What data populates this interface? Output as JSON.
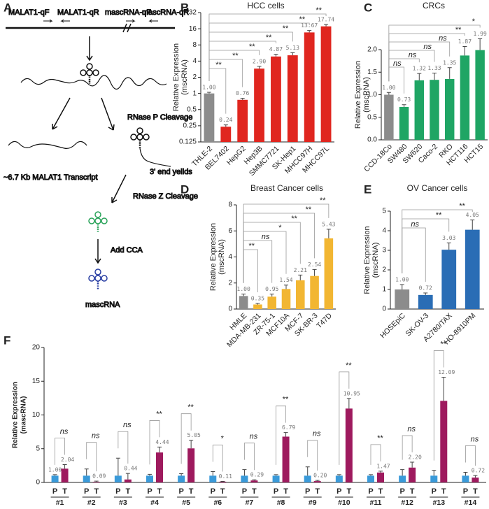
{
  "panel_labels": [
    "A",
    "B",
    "C",
    "D",
    "E",
    "F"
  ],
  "diagram": {
    "primers": [
      "MALAT1-qF",
      "MALAT1-qR",
      "mascRNA-qF",
      "mascRNA-qR"
    ],
    "steps": [
      "RNase P Cleavage",
      "RNase Z Cleavage",
      "Add CCA"
    ],
    "transcript": "~6.7 Kb MALAT1 Transcript",
    "end_product": "3' end yeilds",
    "product": "mascRNA"
  },
  "chart_data": [
    {
      "type": "bar",
      "title": "HCC cells",
      "y_label": [
        "Relative  Expression",
        "(mscRNA)"
      ],
      "categories": [
        "THLE-2",
        "BEL7402",
        "HepG2",
        "Hep3B",
        "SMMC7721",
        "SK-Hep1",
        "MHCC97H",
        "MHCC97L"
      ],
      "values": [
        1.0,
        0.24,
        0.76,
        2.9,
        4.87,
        5.13,
        13.67,
        17.74
      ],
      "value_labels": [
        "1.00",
        "0.24",
        "0.76",
        "2.90",
        "4.87",
        "5.13",
        "13.67",
        "17.74"
      ],
      "errors": [
        0.05,
        0.02,
        0.05,
        0.3,
        0.5,
        0.6,
        1.2,
        1.5
      ],
      "colors": [
        "#8c8c8c",
        "#e0261f",
        "#e0261f",
        "#e0261f",
        "#e0261f",
        "#e0261f",
        "#e0261f",
        "#e0261f"
      ],
      "significance": [
        null,
        "**",
        "**",
        "**",
        "**",
        "**",
        "**",
        "**"
      ],
      "log_scale": true,
      "ylim": [
        0.125,
        32
      ],
      "yticks": [
        0.125,
        0.25,
        0.5,
        1,
        2,
        4,
        8,
        16,
        32
      ]
    },
    {
      "type": "bar",
      "title": "CRCs",
      "y_label": [
        "Relative Expression",
        "(mscRNA)"
      ],
      "categories": [
        "CCD-18Co",
        "SW480",
        "SW620",
        "Caco-2",
        "RKO",
        "HCT116",
        "HCT15"
      ],
      "values": [
        1.0,
        0.73,
        1.32,
        1.33,
        1.35,
        1.87,
        1.99
      ],
      "value_labels": [
        "1.00",
        "0.73",
        "1.32",
        "1.33",
        "1.35",
        "1.87",
        "1.99"
      ],
      "errors": [
        0.05,
        0.05,
        0.15,
        0.15,
        0.25,
        0.2,
        0.25
      ],
      "colors": [
        "#8c8c8c",
        "#1fa564",
        "#1fa564",
        "#1fa564",
        "#1fa564",
        "#1fa564",
        "#1fa564"
      ],
      "significance": [
        null,
        "ns",
        "ns",
        "ns",
        "ns",
        "**",
        "*"
      ],
      "ylim": [
        0,
        2
      ],
      "yticks": [
        {
          "value": 0,
          "label": "0.0"
        },
        {
          "value": 0.5,
          "label": "0.5"
        },
        {
          "value": 1,
          "label": "1.0"
        },
        {
          "value": 1.5,
          "label": "1.5"
        },
        {
          "value": 2,
          "label": "2.0"
        }
      ]
    },
    {
      "type": "bar",
      "title": "Breast Cancer cells",
      "y_label": [
        "Relative Expression",
        "(mscRNA)"
      ],
      "categories": [
        "HMLE",
        "MDA-MB-231",
        "ZR-75-1",
        "MCF10A",
        "MCF-7",
        "SK-BR-3",
        "T47D"
      ],
      "values": [
        1.0,
        0.35,
        0.95,
        1.54,
        2.21,
        2.54,
        5.43
      ],
      "value_labels": [
        "1.00",
        "0.35",
        "0.95",
        "1.54",
        "2.21",
        "2.54",
        "5.43"
      ],
      "errors": [
        0.15,
        0.08,
        0.2,
        0.3,
        0.4,
        0.5,
        0.7
      ],
      "colors": [
        "#8c8c8c",
        "#f2b632",
        "#f2b632",
        "#f2b632",
        "#f2b632",
        "#f2b632",
        "#f2b632"
      ],
      "significance": [
        null,
        "**",
        "ns",
        "*",
        "**",
        "**",
        "**"
      ],
      "ylim": [
        0,
        8
      ],
      "yticks": [
        0,
        2,
        4,
        6,
        8
      ]
    },
    {
      "type": "bar",
      "title": "OV Cancer cells",
      "y_label": [
        "Relative Expression",
        "(mscRNA)"
      ],
      "categories": [
        "HOSEpiC",
        "SK-OV-3",
        "A2780/TAX",
        "HO-8910PM"
      ],
      "values": [
        1.0,
        0.72,
        3.03,
        4.05
      ],
      "value_labels": [
        "1.00",
        "0.72",
        "3.03",
        "4.05"
      ],
      "errors": [
        0.25,
        0.1,
        0.35,
        0.5
      ],
      "colors": [
        "#8c8c8c",
        "#2a6db5",
        "#2a6db5",
        "#2a6db5"
      ],
      "significance": [
        null,
        "ns",
        "**",
        "**"
      ],
      "ylim": [
        0,
        5
      ],
      "yticks": [
        0,
        1,
        2,
        3,
        4,
        5
      ]
    },
    {
      "type": "grouped_bar",
      "y_label": [
        "Relative Expression",
        "(mascRNA)"
      ],
      "categories": [
        "#1",
        "#2",
        "#3",
        "#4",
        "#5",
        "#6",
        "#7",
        "#8",
        "#9",
        "#10",
        "#11",
        "#12",
        "#13",
        "#14"
      ],
      "series": [
        {
          "name": "P",
          "color": "#3a9ad9",
          "values": [
            1.0,
            1,
            1,
            1,
            1,
            1,
            1,
            1,
            1,
            1,
            1,
            1,
            1,
            1
          ],
          "value_labels": [
            "1.00",
            null,
            null,
            null,
            null,
            null,
            null,
            null,
            null,
            null,
            null,
            null,
            null,
            null
          ],
          "errors": [
            0.15,
            1.0,
            2.6,
            0.2,
            0.3,
            0.6,
            0.9,
            0.15,
            1.3,
            0.15,
            0.15,
            0.9,
            0.8,
            0.5
          ]
        },
        {
          "name": "T",
          "color": "#9e1a5e",
          "values": [
            2.04,
            0.09,
            0.44,
            4.44,
            5.05,
            0.11,
            0.29,
            6.79,
            0.2,
            10.95,
            1.47,
            2.2,
            12.09,
            0.72
          ],
          "value_labels": [
            "2.04",
            "0.09",
            "0.44",
            "4.44",
            "5.05",
            "0.11",
            "0.29",
            "6.79",
            "0.20",
            "10.95",
            "1.47",
            "2.20",
            "12.09",
            "0.72"
          ],
          "errors": [
            0.6,
            0.1,
            0.9,
            0.8,
            1.2,
            0.05,
            0.1,
            0.6,
            0.1,
            1.5,
            0.2,
            0.8,
            3.5,
            0.3
          ]
        }
      ],
      "significance": [
        "ns",
        "ns",
        "ns",
        "**",
        "**",
        "*",
        "ns",
        "**",
        "ns",
        "**",
        "**",
        "ns",
        "**",
        "ns"
      ],
      "ylim": [
        0,
        20
      ],
      "yticks": [
        0,
        5,
        10,
        15,
        20
      ]
    }
  ]
}
